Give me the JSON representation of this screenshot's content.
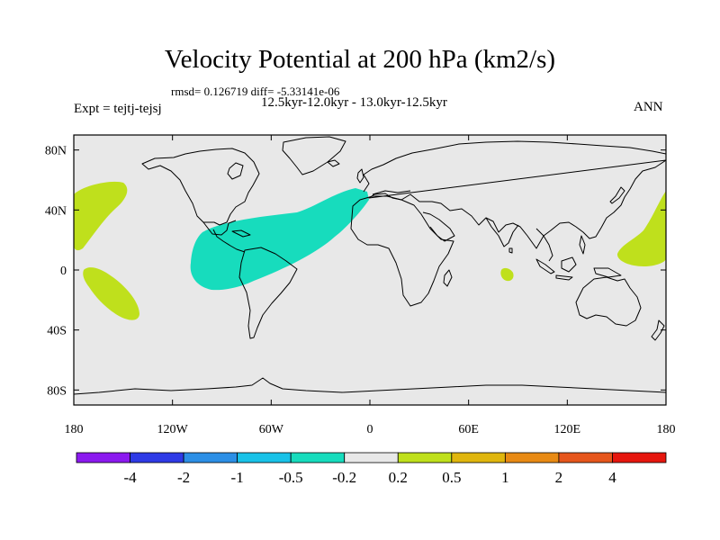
{
  "title": "Velocity Potential at 200 hPa (km2/s)",
  "rmsd_text": "rmsd= 0.126719 diff= -5.33141e-06",
  "periods_text": "12.5kyr-12.0kyr - 13.0kyr-12.5kyr",
  "expt_text": "Expt = tejtj-tejsj",
  "season": "ANN",
  "map": {
    "projection": "cylindrical equidistant",
    "lon_range": [
      -180,
      180
    ],
    "lat_range": [
      -90,
      90
    ],
    "lat_ticks": [
      {
        "value": 80,
        "label": "80N"
      },
      {
        "value": 40,
        "label": "40N"
      },
      {
        "value": 0,
        "label": "0"
      },
      {
        "value": -40,
        "label": "40S"
      },
      {
        "value": -80,
        "label": "80S"
      }
    ],
    "lon_ticks": [
      {
        "value": -180,
        "label": "180"
      },
      {
        "value": -120,
        "label": "120W"
      },
      {
        "value": -60,
        "label": "60W"
      },
      {
        "value": 0,
        "label": "0"
      },
      {
        "value": 60,
        "label": "60E"
      },
      {
        "value": 120,
        "label": "120E"
      },
      {
        "value": 180,
        "label": "180"
      }
    ],
    "background_color": "#e8e8e8"
  },
  "colorbar": {
    "colors": [
      "#8b1aef",
      "#2e3ae6",
      "#2c8fe6",
      "#19c2e8",
      "#17dcbd",
      "#e8e8e8",
      "#bfe01c",
      "#e0b60e",
      "#e88a14",
      "#e6561c",
      "#e6160e"
    ],
    "labels": [
      "-4",
      "-2",
      "-1",
      "-0.5",
      "-0.2",
      "0.2",
      "0.5",
      "1",
      "2",
      "4"
    ]
  }
}
